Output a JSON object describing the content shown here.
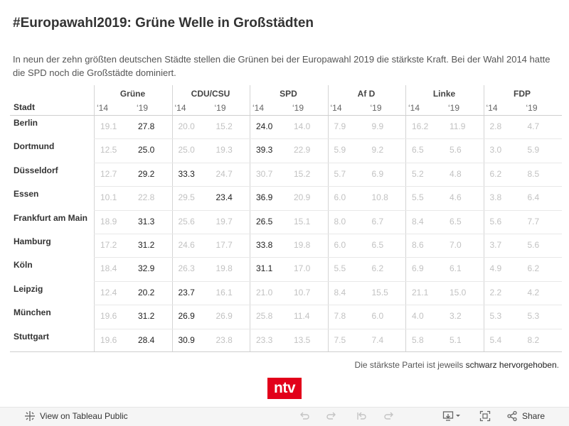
{
  "header": {
    "title": "#Europawahl2019: Grüne Welle in Großstädten",
    "subtitle": "In neun der zehn größten deutschen Städte stellen die Grünen bei der Europawahl 2019 die stärkste Kraft. Bei der Wahl 2014 hatte die SPD noch die Großstädte dominiert."
  },
  "table": {
    "city_header": "Stadt",
    "parties": [
      {
        "name": "Grüne",
        "y14": "‘14",
        "y19": "‘19"
      },
      {
        "name": "CDU/CSU",
        "y14": "‘14",
        "y19": "‘19"
      },
      {
        "name": "SPD",
        "y14": "‘14",
        "y19": "‘19"
      },
      {
        "name": "Af D",
        "y14": "‘14",
        "y19": "‘19"
      },
      {
        "name": "Linke",
        "y14": "‘14",
        "y19": "‘19"
      },
      {
        "name": "FDP",
        "y14": "‘14",
        "y19": "‘19"
      }
    ],
    "rows": [
      {
        "city": "Berlin",
        "values": [
          "19.1",
          "27.8",
          "20.0",
          "15.2",
          "24.0",
          "14.0",
          "7.9",
          "9.9",
          "16.2",
          "11.9",
          "2.8",
          "4.7"
        ],
        "strong": [
          1,
          4
        ]
      },
      {
        "city": "Dortmund",
        "values": [
          "12.5",
          "25.0",
          "25.0",
          "19.3",
          "39.3",
          "22.9",
          "5.9",
          "9.2",
          "6.5",
          "5.6",
          "3.0",
          "5.9"
        ],
        "strong": [
          1,
          4
        ]
      },
      {
        "city": "Düsseldorf",
        "values": [
          "12.7",
          "29.2",
          "33.3",
          "24.7",
          "30.7",
          "15.2",
          "5.7",
          "6.9",
          "5.2",
          "4.8",
          "6.2",
          "8.5"
        ],
        "strong": [
          1,
          2
        ]
      },
      {
        "city": "Essen",
        "values": [
          "10.1",
          "22.8",
          "29.5",
          "23.4",
          "36.9",
          "20.9",
          "6.0",
          "10.8",
          "5.5",
          "4.6",
          "3.8",
          "6.4"
        ],
        "strong": [
          3,
          4
        ]
      },
      {
        "city": "Frankfurt am Main",
        "values": [
          "18.9",
          "31.3",
          "25.6",
          "19.7",
          "26.5",
          "15.1",
          "8.0",
          "6.7",
          "8.4",
          "6.5",
          "5.6",
          "7.7"
        ],
        "strong": [
          1,
          4
        ]
      },
      {
        "city": "Hamburg",
        "values": [
          "17.2",
          "31.2",
          "24.6",
          "17.7",
          "33.8",
          "19.8",
          "6.0",
          "6.5",
          "8.6",
          "7.0",
          "3.7",
          "5.6"
        ],
        "strong": [
          1,
          4
        ]
      },
      {
        "city": "Köln",
        "values": [
          "18.4",
          "32.9",
          "26.3",
          "19.8",
          "31.1",
          "17.0",
          "5.5",
          "6.2",
          "6.9",
          "6.1",
          "4.9",
          "6.2"
        ],
        "strong": [
          1,
          4
        ]
      },
      {
        "city": "Leipzig",
        "values": [
          "12.4",
          "20.2",
          "23.7",
          "16.1",
          "21.0",
          "10.7",
          "8.4",
          "15.5",
          "21.1",
          "15.0",
          "2.2",
          "4.2"
        ],
        "strong": [
          1,
          2
        ]
      },
      {
        "city": "München",
        "values": [
          "19.6",
          "31.2",
          "26.9",
          "26.9",
          "25.8",
          "11.4",
          "7.8",
          "6.0",
          "4.0",
          "3.2",
          "5.3",
          "5.3"
        ],
        "strong": [
          1,
          2
        ]
      },
      {
        "city": "Stuttgart",
        "values": [
          "19.6",
          "28.4",
          "30.9",
          "23.8",
          "23.3",
          "13.5",
          "7.5",
          "7.4",
          "5.8",
          "5.1",
          "5.4",
          "8.2"
        ],
        "strong": [
          1,
          2
        ]
      }
    ]
  },
  "footnote": {
    "prefix": "Die stärkste Partei ist jeweils ",
    "emphasis": "schwarz hervorgehoben",
    "suffix": "."
  },
  "logo": {
    "text": "ntv",
    "color": "#e2001a"
  },
  "toolbar": {
    "view_label": "View on Tableau Public",
    "share_label": "Share",
    "icons": [
      "undo-icon",
      "redo-icon",
      "revert-icon",
      "refresh-icon",
      "download-icon",
      "fullscreen-icon",
      "share-icon"
    ]
  }
}
